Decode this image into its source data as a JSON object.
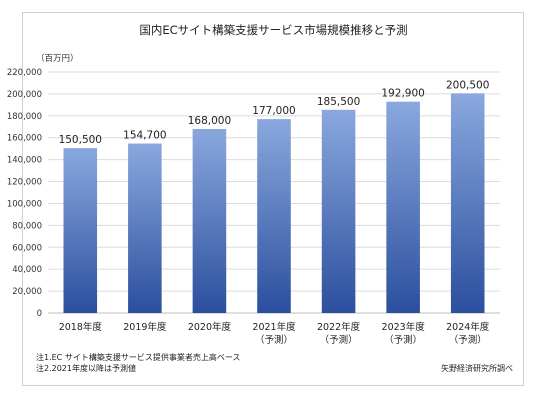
{
  "chart_data": {
    "type": "bar",
    "title": "国内ECサイト構築支援サービス市場規模推移と予測",
    "unit_label": "（百万円）",
    "categories": [
      [
        "2018年度"
      ],
      [
        "2019年度"
      ],
      [
        "2020年度"
      ],
      [
        "2021年度",
        "（予測）"
      ],
      [
        "2022年度",
        "（予測）"
      ],
      [
        "2023年度",
        "（予測）"
      ],
      [
        "2024年度",
        "（予測）"
      ]
    ],
    "values": [
      150500,
      154700,
      168000,
      177000,
      185500,
      192900,
      200500
    ],
    "data_labels": [
      "150,500",
      "154,700",
      "168,000",
      "177,000",
      "185,500",
      "192,900",
      "200,500"
    ],
    "ylim": [
      0,
      220000
    ],
    "yticks": [
      0,
      20000,
      40000,
      60000,
      80000,
      100000,
      120000,
      140000,
      160000,
      180000,
      200000,
      220000
    ],
    "ytick_labels": [
      "0",
      "20,000",
      "40,000",
      "60,000",
      "80,000",
      "100,000",
      "120,000",
      "140,000",
      "160,000",
      "180,000",
      "200,000",
      "220,000"
    ],
    "grid": true,
    "bar_color_top": "#8aa8de",
    "bar_color_bottom": "#2b4f9e"
  },
  "notes": {
    "note1": "注1.EC サイト構築支援サービス提供事業者売上高ベース",
    "note2": "注2.2021年度以降は予測値",
    "source": "矢野経済研究所調べ"
  }
}
